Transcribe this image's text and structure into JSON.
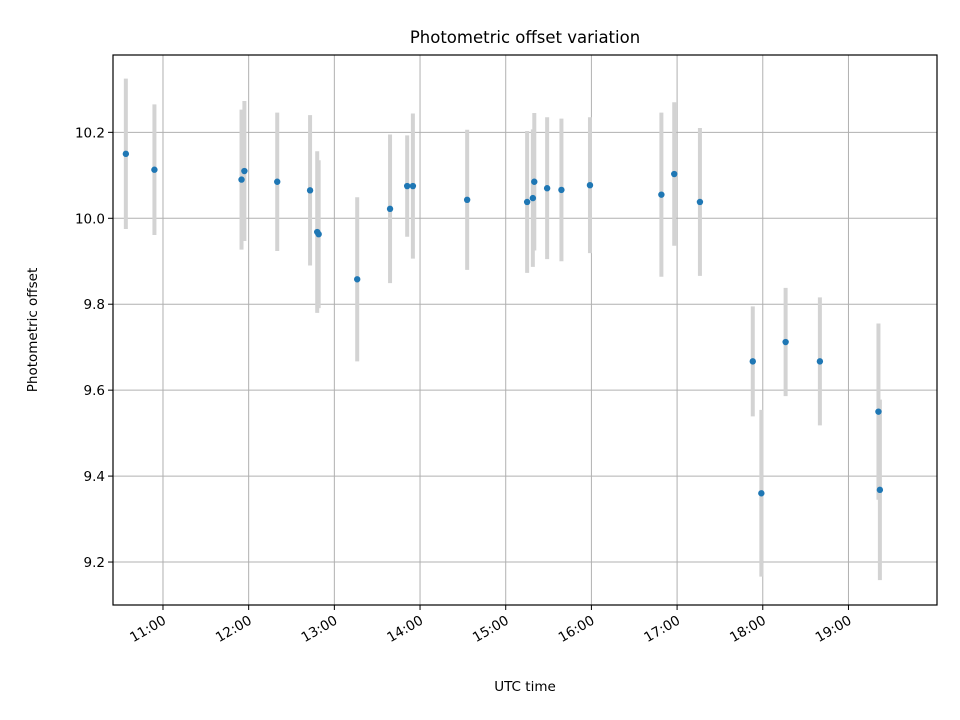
{
  "chart_data": {
    "type": "scatter",
    "title": "Photometric offset variation",
    "xlabel": "UTC time",
    "ylabel": "Photometric offset",
    "x_unit": "time of day (HH:MM, UTC)",
    "xlim": [
      "10:25",
      "20:02"
    ],
    "ylim": [
      9.1,
      10.38
    ],
    "x_ticks": [
      "11:00",
      "12:00",
      "13:00",
      "14:00",
      "15:00",
      "16:00",
      "17:00",
      "18:00",
      "19:00"
    ],
    "y_ticks": [
      "9.2",
      "9.4",
      "9.6",
      "9.8",
      "10.0",
      "10.2"
    ],
    "grid": true,
    "marker_color": "#1f77b4",
    "errorbar_color": "#d3d3d3",
    "points": [
      {
        "t": "10:34",
        "y": 10.15,
        "err": 0.175
      },
      {
        "t": "10:54",
        "y": 10.113,
        "err": 0.152
      },
      {
        "t": "11:55",
        "y": 10.09,
        "err": 0.163
      },
      {
        "t": "11:57",
        "y": 10.11,
        "err": 0.163
      },
      {
        "t": "12:20",
        "y": 10.085,
        "err": 0.161
      },
      {
        "t": "12:43",
        "y": 10.065,
        "err": 0.175
      },
      {
        "t": "12:48",
        "y": 9.968,
        "err": 0.188
      },
      {
        "t": "12:49",
        "y": 9.963,
        "err": 0.172
      },
      {
        "t": "13:16",
        "y": 9.858,
        "err": 0.191
      },
      {
        "t": "13:39",
        "y": 10.022,
        "err": 0.173
      },
      {
        "t": "13:51",
        "y": 10.075,
        "err": 0.118
      },
      {
        "t": "13:55",
        "y": 10.075,
        "err": 0.169
      },
      {
        "t": "14:33",
        "y": 10.043,
        "err": 0.163
      },
      {
        "t": "15:15",
        "y": 10.038,
        "err": 0.165
      },
      {
        "t": "15:19",
        "y": 10.047,
        "err": 0.16
      },
      {
        "t": "15:20",
        "y": 10.085,
        "err": 0.16
      },
      {
        "t": "15:29",
        "y": 10.07,
        "err": 0.165
      },
      {
        "t": "15:39",
        "y": 10.066,
        "err": 0.166
      },
      {
        "t": "15:59",
        "y": 10.077,
        "err": 0.158
      },
      {
        "t": "16:49",
        "y": 10.055,
        "err": 0.191
      },
      {
        "t": "16:58",
        "y": 10.103,
        "err": 0.167
      },
      {
        "t": "17:16",
        "y": 10.038,
        "err": 0.172
      },
      {
        "t": "17:53",
        "y": 9.667,
        "err": 0.128
      },
      {
        "t": "17:59",
        "y": 9.36,
        "err": 0.194
      },
      {
        "t": "18:16",
        "y": 9.712,
        "err": 0.126
      },
      {
        "t": "18:40",
        "y": 9.667,
        "err": 0.149
      },
      {
        "t": "19:21",
        "y": 9.55,
        "err": 0.205
      },
      {
        "t": "19:22",
        "y": 9.368,
        "err": 0.21
      }
    ]
  }
}
